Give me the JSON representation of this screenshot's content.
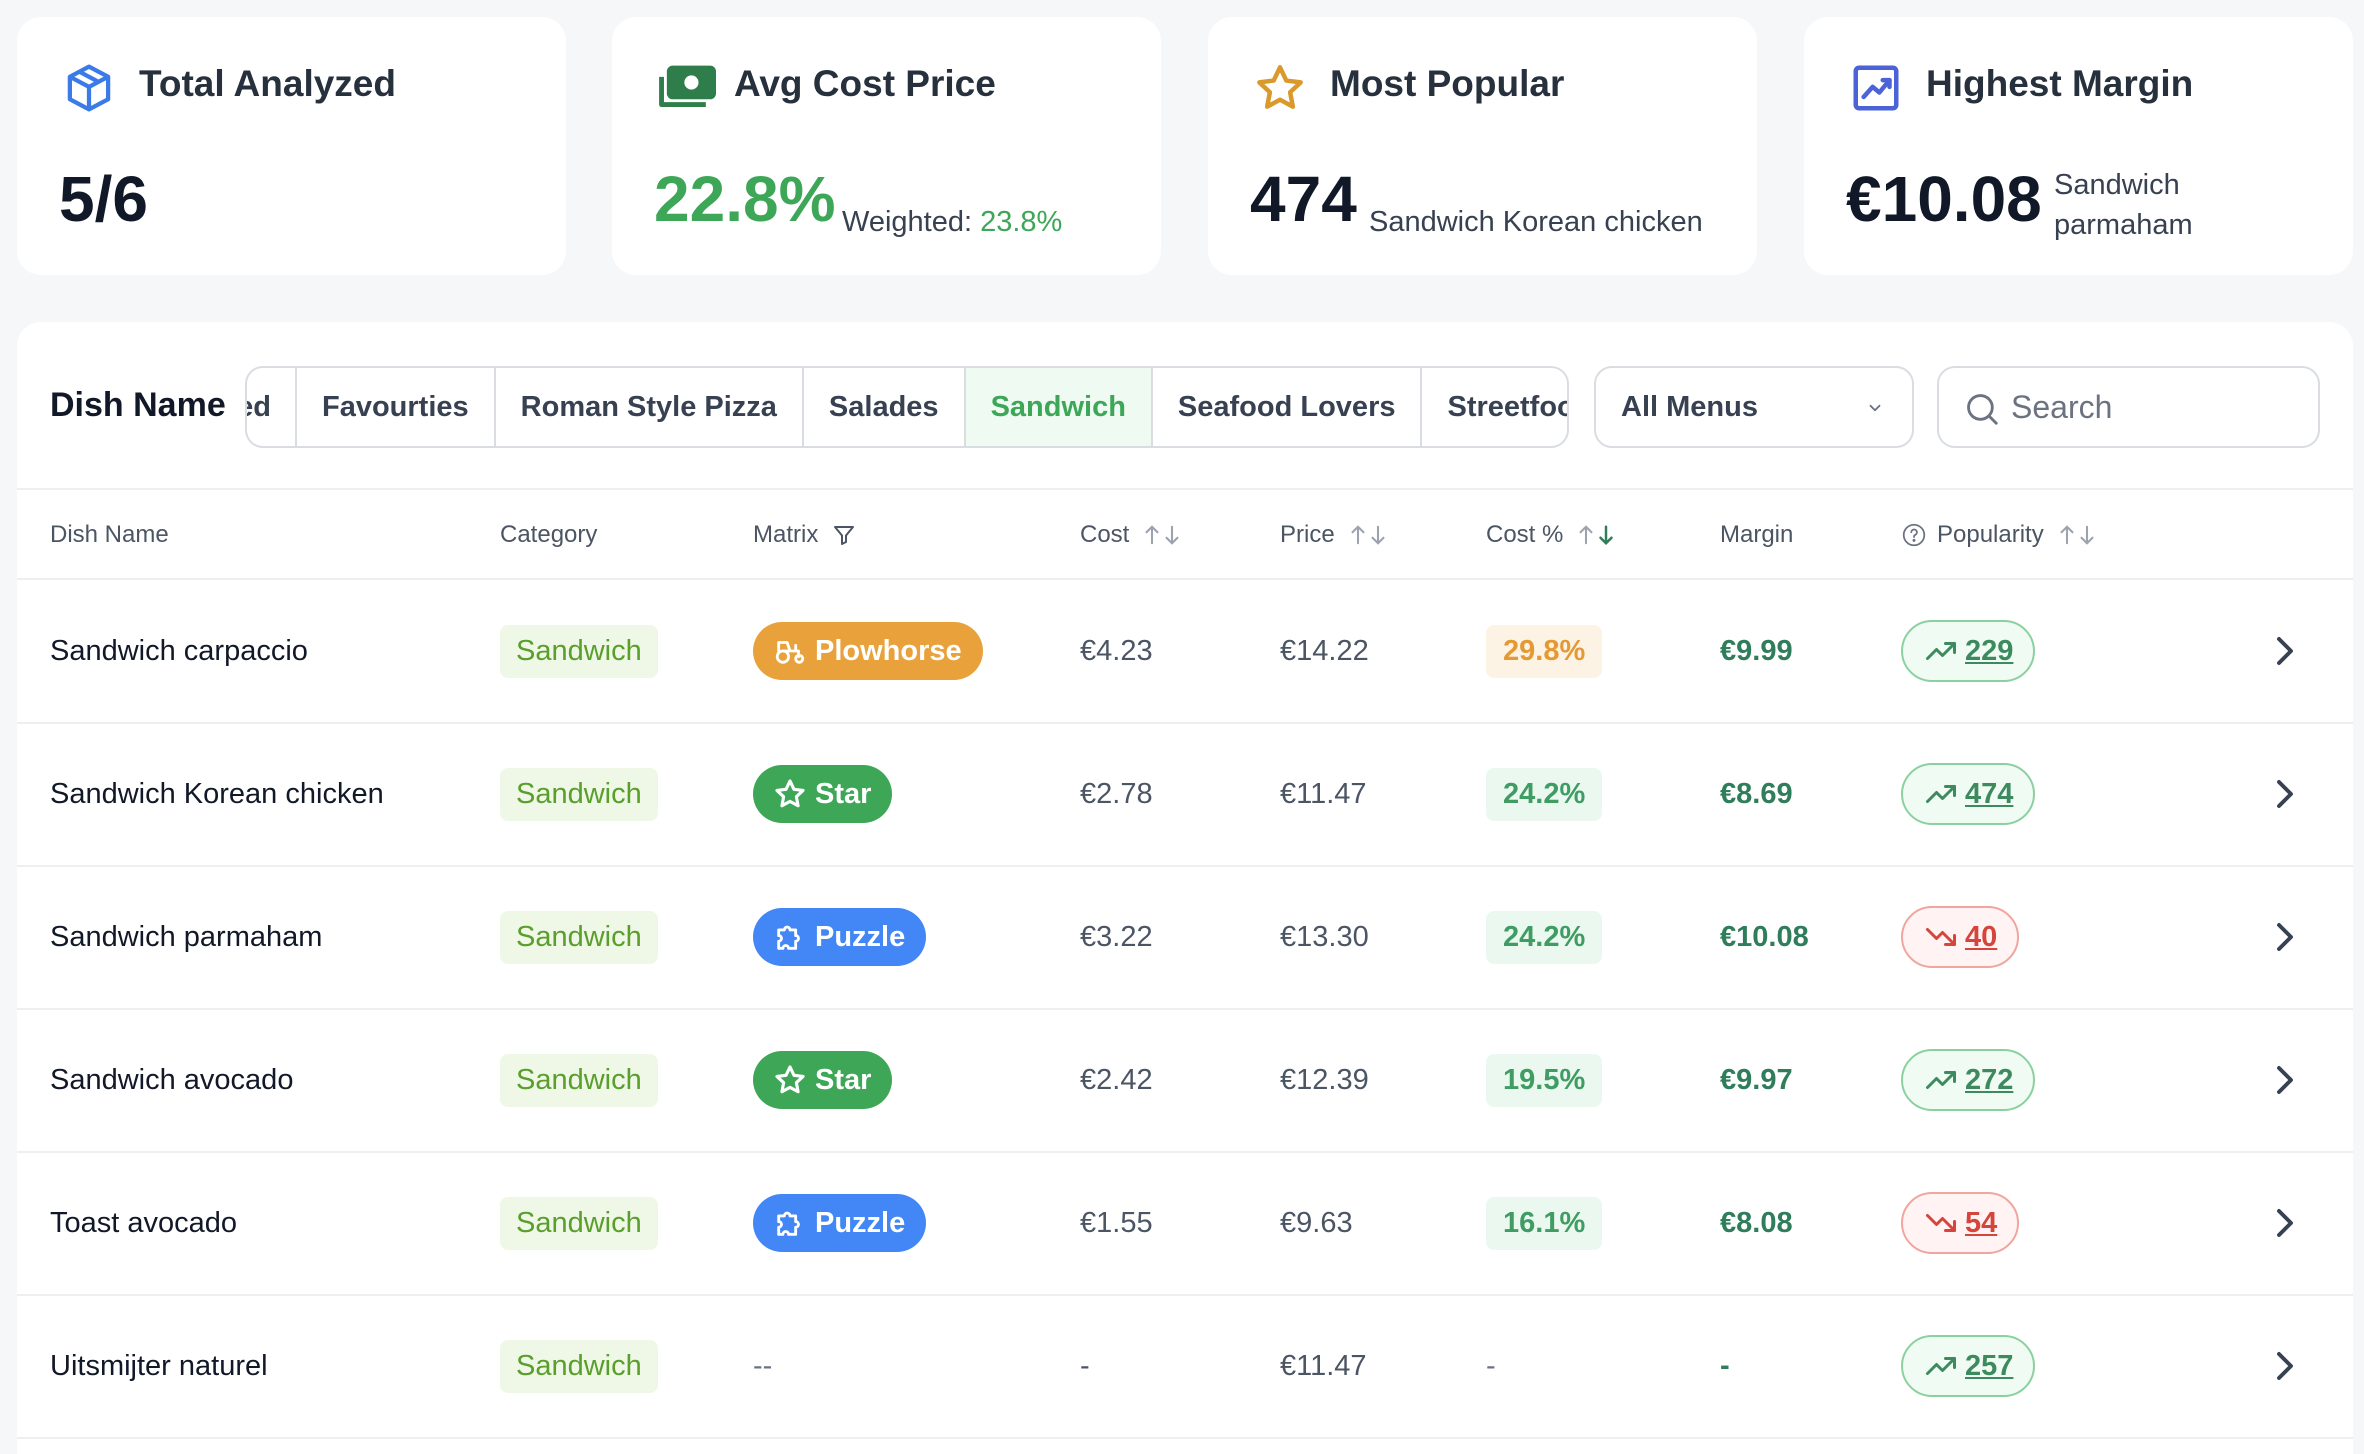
{
  "stats": {
    "total_analyzed": {
      "title": "Total Analyzed",
      "value": "5/6",
      "icon": "cube-icon"
    },
    "avg_cost_price": {
      "title": "Avg Cost Price",
      "value": "22.8%",
      "weighted_label": "Weighted:",
      "weighted_value": "23.8%",
      "icon": "money-icon"
    },
    "most_popular": {
      "title": "Most Popular",
      "value": "474",
      "dish": "Sandwich Korean chicken",
      "icon": "star-icon"
    },
    "highest_margin": {
      "title": "Highest Margin",
      "value": "€10.08",
      "dish_line1": "Sandwich",
      "dish_line2": "parmaham",
      "icon": "trending-chart-icon"
    }
  },
  "toolbar": {
    "label": "Dish Name",
    "tabs": [
      "ed",
      "Favourties",
      "Roman Style Pizza",
      "Salades",
      "Sandwich",
      "Seafood Lovers",
      "Streetfood"
    ],
    "active_tab": "Sandwich",
    "menu_select": "All Menus",
    "search_placeholder": "Search"
  },
  "table": {
    "headers": {
      "name": "Dish Name",
      "category": "Category",
      "matrix": "Matrix",
      "cost": "Cost",
      "price": "Price",
      "cost_pct": "Cost %",
      "margin": "Margin",
      "popularity": "Popularity"
    },
    "rows": [
      {
        "name": "Sandwich carpaccio",
        "category": "Sandwich",
        "matrix": "Plowhorse",
        "cost": "€4.23",
        "price": "€14.22",
        "cost_pct": "29.8%",
        "margin": "€9.99",
        "popularity": "229",
        "trend": "up"
      },
      {
        "name": "Sandwich Korean chicken",
        "category": "Sandwich",
        "matrix": "Star",
        "cost": "€2.78",
        "price": "€11.47",
        "cost_pct": "24.2%",
        "margin": "€8.69",
        "popularity": "474",
        "trend": "up"
      },
      {
        "name": "Sandwich parmaham",
        "category": "Sandwich",
        "matrix": "Puzzle",
        "cost": "€3.22",
        "price": "€13.30",
        "cost_pct": "24.2%",
        "margin": "€10.08",
        "popularity": "40",
        "trend": "down"
      },
      {
        "name": "Sandwich avocado",
        "category": "Sandwich",
        "matrix": "Star",
        "cost": "€2.42",
        "price": "€12.39",
        "cost_pct": "19.5%",
        "margin": "€9.97",
        "popularity": "272",
        "trend": "up"
      },
      {
        "name": "Toast avocado",
        "category": "Sandwich",
        "matrix": "Puzzle",
        "cost": "€1.55",
        "price": "€9.63",
        "cost_pct": "16.1%",
        "margin": "€8.08",
        "popularity": "54",
        "trend": "down"
      },
      {
        "name": "Uitsmijter naturel",
        "category": "Sandwich",
        "matrix": "--",
        "cost": "-",
        "price": "€11.47",
        "cost_pct": "-",
        "margin": "-",
        "popularity": "257",
        "trend": "up"
      }
    ]
  },
  "colors": {
    "accent_green": "#3da757",
    "plowhorse": "#e9a23b",
    "star": "#3da757",
    "puzzle": "#4287f5",
    "trend_down": "#d6453b"
  }
}
